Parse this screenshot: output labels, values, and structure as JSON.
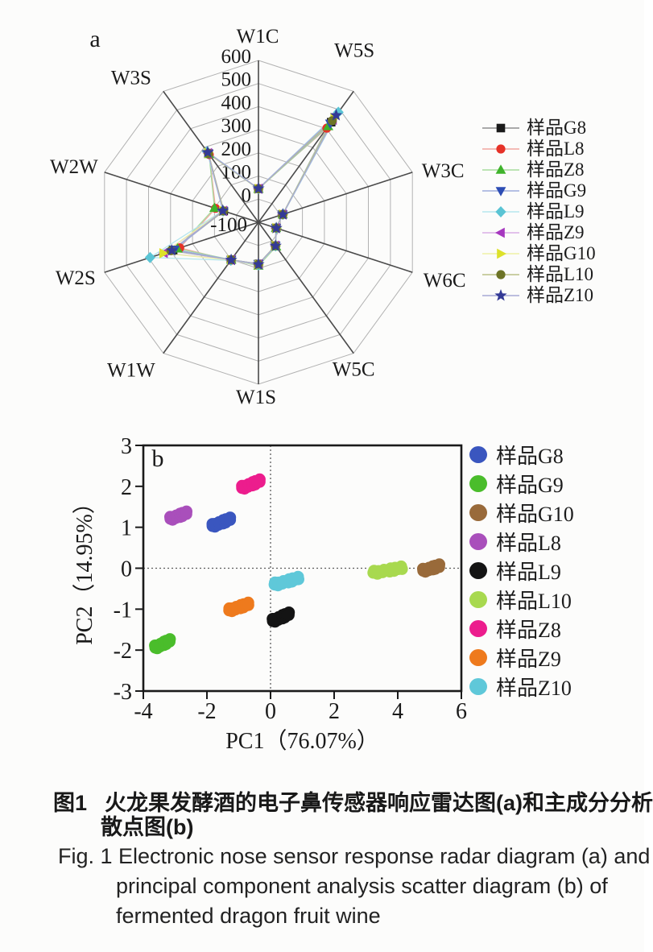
{
  "figure": {
    "caption": {
      "zh_tag": "图1",
      "zh_line1": "火龙果发酵酒的电子鼻传感器响应雷达图(a)和主成分分析",
      "zh_line2": "散点图(b)",
      "en_line1": "Fig. 1 Electronic nose sensor response radar diagram (a) and",
      "en_line2": "principal component analysis scatter diagram (b) of",
      "en_line3": "fermented dragon fruit wine"
    }
  },
  "chart_data": [
    {
      "type": "radar",
      "panel_label": "a",
      "axes": [
        "W1C",
        "W5S",
        "W3C",
        "W6C",
        "W5C",
        "W1S",
        "W1W",
        "W2S",
        "W2W",
        "W3S"
      ],
      "radial_min": -100,
      "radial_max": 600,
      "radial_step": 100,
      "ring_labels": [
        "600",
        "500",
        "400",
        "300",
        "200",
        "100",
        "0",
        "-100"
      ],
      "grid_color": "#b2b2b2",
      "spoke_color": "#4a4a4a",
      "series": [
        {
          "name": "样品G8",
          "marker": "square",
          "color": "#1a1a1a",
          "line_color": "#8f8f8f",
          "values": [
            45,
            435,
            10,
            -20,
            25,
            80,
            100,
            288,
            58,
            268
          ]
        },
        {
          "name": "样品L8",
          "marker": "circle",
          "color": "#e63228",
          "line_color": "#f2a59f",
          "values": [
            47,
            403,
            12,
            -18,
            27,
            85,
            104,
            258,
            95,
            262
          ]
        },
        {
          "name": "样品Z8",
          "marker": "triangle-up",
          "color": "#3fb32b",
          "line_color": "#a6dc9c",
          "values": [
            44,
            413,
            10,
            -20,
            30,
            88,
            100,
            268,
            100,
            264
          ]
        },
        {
          "name": "样品G9",
          "marker": "triangle-down",
          "color": "#2d4db4",
          "line_color": "#9dabdd",
          "values": [
            45,
            428,
            10,
            -20,
            25,
            80,
            100,
            282,
            60,
            268
          ]
        },
        {
          "name": "样品L9",
          "marker": "diamond",
          "color": "#5ac4d4",
          "line_color": "#b5e6ee",
          "values": [
            46,
            488,
            12,
            -18,
            26,
            84,
            103,
            393,
            62,
            278
          ]
        },
        {
          "name": "样品Z9",
          "marker": "triangle-left",
          "color": "#a637bf",
          "line_color": "#d9aee6",
          "values": [
            45,
            448,
            10,
            -20,
            25,
            82,
            101,
            330,
            60,
            270
          ]
        },
        {
          "name": "样品G10",
          "marker": "triangle-right",
          "color": "#dde12a",
          "line_color": "#eef1a6",
          "values": [
            45,
            458,
            11,
            -19,
            25,
            84,
            102,
            333,
            61,
            271
          ]
        },
        {
          "name": "样品L10",
          "marker": "circle",
          "color": "#6d7426",
          "line_color": "#b9c088",
          "values": [
            45,
            443,
            10,
            -20,
            25,
            81,
            100,
            298,
            59,
            269
          ]
        },
        {
          "name": "样品Z10",
          "marker": "star",
          "color": "#343a96",
          "line_color": "#a6aad6",
          "values": [
            46,
            472,
            11,
            -19,
            26,
            82,
            101,
            294,
            62,
            274
          ]
        }
      ]
    },
    {
      "type": "scatter",
      "panel_label": "b",
      "xlabel": "PC1（76.07%）",
      "ylabel": "PC2（14.95%）",
      "xlim": [
        -4,
        6
      ],
      "ylim": [
        -3,
        3
      ],
      "xticks": [
        "-4",
        "-2",
        "0",
        "2",
        "4",
        "6"
      ],
      "yticks": [
        "3",
        "2",
        "1",
        "0",
        "-1",
        "-2",
        "-3"
      ],
      "zero_lines": "dotted",
      "series": [
        {
          "name": "样品G8",
          "color": "#3a56bf",
          "center": [
            -1.55,
            1.12
          ],
          "x_span": 0.6,
          "y_rise": 0.18
        },
        {
          "name": "样品G9",
          "color": "#4abd2b",
          "center": [
            -3.4,
            -1.85
          ],
          "x_span": 0.5,
          "y_rise": 0.18
        },
        {
          "name": "样品G10",
          "color": "#996a3a",
          "center": [
            5.05,
            0.0
          ],
          "x_span": 0.55,
          "y_rise": 0.12
        },
        {
          "name": "样品L8",
          "color": "#a94fbb",
          "center": [
            -2.9,
            1.28
          ],
          "x_span": 0.55,
          "y_rise": 0.15
        },
        {
          "name": "样品L9",
          "color": "#141414",
          "center": [
            0.32,
            -1.2
          ],
          "x_span": 0.55,
          "y_rise": 0.18
        },
        {
          "name": "样品L10",
          "color": "#a8d94f",
          "center": [
            3.68,
            -0.05
          ],
          "x_span": 0.95,
          "y_rise": 0.12
        },
        {
          "name": "样品Z8",
          "color": "#ec1d8d",
          "center": [
            -0.62,
            2.05
          ],
          "x_span": 0.6,
          "y_rise": 0.18
        },
        {
          "name": "样品Z9",
          "color": "#ee7a1d",
          "center": [
            -1.0,
            -0.95
          ],
          "x_span": 0.65,
          "y_rise": 0.16
        },
        {
          "name": "样品Z10",
          "color": "#5fc8d9",
          "center": [
            0.5,
            -0.32
          ],
          "x_span": 0.8,
          "y_rise": 0.16
        }
      ]
    }
  ]
}
